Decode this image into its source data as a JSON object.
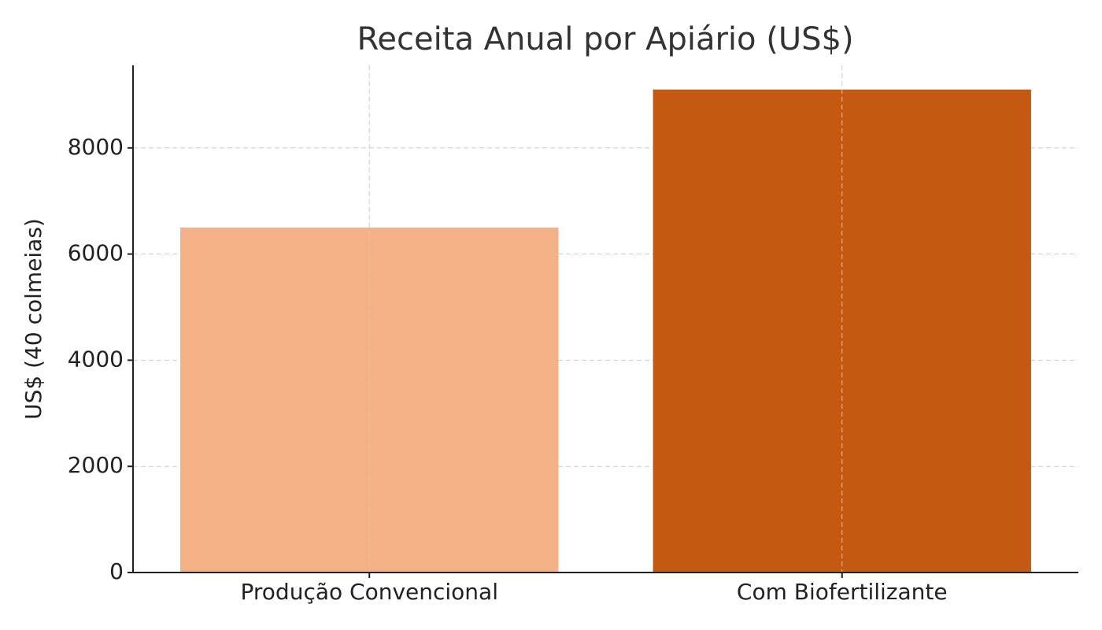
{
  "chart_data": {
    "type": "bar",
    "title": "Receita Anual por Apiário (US$)",
    "y_label": "US$ (40 colmeias)",
    "categories": [
      "Produção Convencional",
      "Com Biofertilizante"
    ],
    "values": [
      6500,
      9100
    ],
    "colors": [
      "#f3b185",
      "#c45a12"
    ],
    "ylim": [
      0,
      9555
    ],
    "yticks": [
      0,
      2000,
      4000,
      6000,
      8000
    ],
    "grid": true
  }
}
